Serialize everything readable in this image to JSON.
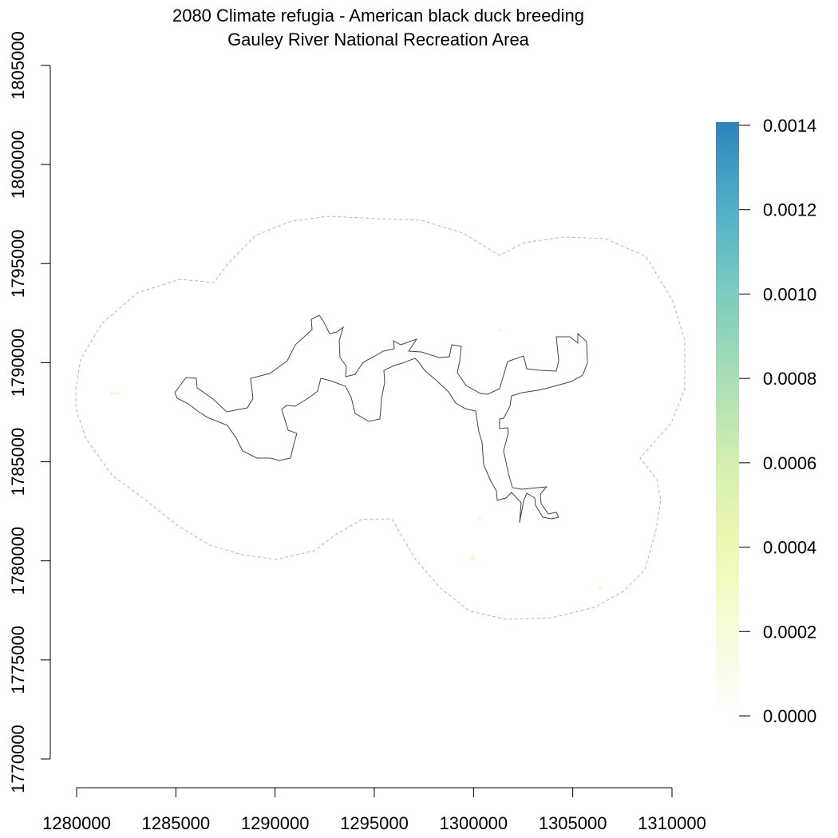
{
  "title": {
    "line1": "2080 Climate refugia - American black duck breeding",
    "line2": "Gauley River National Recreation Area"
  },
  "axes": {
    "x_ticks": [
      "1280000",
      "1285000",
      "1290000",
      "1295000",
      "1300000",
      "1305000",
      "1310000"
    ],
    "y_ticks": [
      "1770000",
      "1775000",
      "1780000",
      "1785000",
      "1790000",
      "1795000",
      "1800000",
      "1805000"
    ]
  },
  "legend": {
    "labels": [
      "0.0000",
      "0.0002",
      "0.0004",
      "0.0006",
      "0.0008",
      "0.0010",
      "0.0012",
      "0.0014"
    ],
    "colors": [
      "#ffffff",
      "#f7fcd9",
      "#eef8b0",
      "#d3efb0",
      "#a8deb4",
      "#7cccc0",
      "#4fafc8",
      "#2c83bd"
    ]
  },
  "map": {
    "boundary_color": "#444444",
    "buffer_color": "#b5b5b5"
  }
}
